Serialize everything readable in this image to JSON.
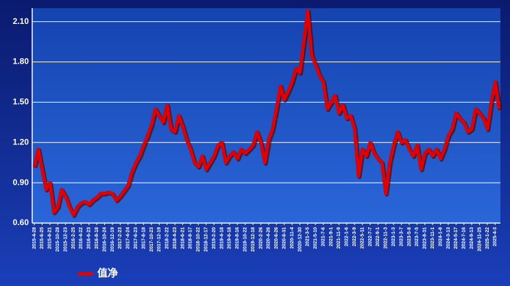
{
  "chart_data": {
    "type": "line",
    "categories": [
      "2015-4-28",
      null,
      "2015-6-25",
      null,
      "2015-8-21",
      null,
      "2015-10-28",
      null,
      "2015-12-23",
      null,
      "2016-2-25",
      null,
      "2016-4-22",
      null,
      "2016-6-23",
      null,
      "2016-8-18",
      null,
      "2016-10-24",
      null,
      "2016-12-19",
      null,
      "2017-2-23",
      null,
      "2017-4-24",
      null,
      "2017-6-23",
      null,
      "2017-8-18",
      null,
      "2017-10-23",
      null,
      "2017-12-19",
      null,
      "2018-2-22",
      null,
      "2018-4-23",
      null,
      "2018-6-21",
      null,
      "2018-8-17",
      null,
      "2018-10-22",
      null,
      "2018-12-17",
      null,
      "2019-2-20",
      null,
      "2019-4-18",
      null,
      "2019-6-18",
      null,
      "2019-8-16",
      null,
      "2019-10-22",
      null,
      "2019-12-18",
      null,
      "2020-2-26",
      null,
      "2020-4-26",
      null,
      "2020-6-26",
      null,
      "2020-8-31",
      null,
      "2020-11-4",
      null,
      "2020-12-30",
      null,
      "2021-3-5",
      null,
      "2021-5-10",
      null,
      "2021-7-6",
      null,
      "2021-9-1",
      null,
      "2021-11-9",
      null,
      "2022-1-6",
      null,
      "2022-3-9",
      null,
      "2022-5-11",
      null,
      "2022-7-7",
      null,
      "2022-9-1",
      null,
      "2022-11-3",
      null,
      "2023-1-3",
      null,
      "2023-3-7",
      null,
      "2023-5-8",
      null,
      "2023-7-5",
      null,
      "2023-8-31",
      null,
      "2023-11-1",
      null,
      "2024-1-8",
      null,
      "2024-3-13",
      null,
      "2024-5-17",
      null,
      "2024-7-16",
      null,
      "2024-9-13",
      null,
      "2024-11-25",
      null,
      "2025-1-22",
      null,
      "2025-4-3",
      null
    ],
    "series": [
      {
        "name": "值净",
        "color": "#e00000",
        "values": [
          1.02,
          1.15,
          1.0,
          0.85,
          0.9,
          0.68,
          0.72,
          0.85,
          0.8,
          0.72,
          0.66,
          0.72,
          0.75,
          0.76,
          0.74,
          0.77,
          0.79,
          0.82,
          0.82,
          0.83,
          0.82,
          0.77,
          0.8,
          0.84,
          0.88,
          0.98,
          1.05,
          1.1,
          1.18,
          1.25,
          1.33,
          1.45,
          1.4,
          1.35,
          1.48,
          1.3,
          1.28,
          1.4,
          1.32,
          1.22,
          1.15,
          1.05,
          1.02,
          1.1,
          1.0,
          1.05,
          1.1,
          1.18,
          1.2,
          1.05,
          1.1,
          1.13,
          1.08,
          1.15,
          1.12,
          1.15,
          1.18,
          1.28,
          1.2,
          1.05,
          1.22,
          1.3,
          1.45,
          1.62,
          1.52,
          1.58,
          1.65,
          1.75,
          1.72,
          1.95,
          2.18,
          1.85,
          1.78,
          1.7,
          1.65,
          1.45,
          1.5,
          1.55,
          1.42,
          1.48,
          1.38,
          1.4,
          1.3,
          0.95,
          1.15,
          1.1,
          1.2,
          1.12,
          1.08,
          1.05,
          0.82,
          1.05,
          1.18,
          1.28,
          1.2,
          1.22,
          1.15,
          1.1,
          1.18,
          1.0,
          1.12,
          1.15,
          1.1,
          1.15,
          1.08,
          1.15,
          1.25,
          1.3,
          1.42,
          1.38,
          1.35,
          1.28,
          1.3,
          1.45,
          1.42,
          1.38,
          1.3,
          1.5,
          1.65,
          1.45
        ]
      }
    ],
    "ylim": [
      0.6,
      2.2
    ],
    "yticks": [
      {
        "value": 0.6,
        "label": "0.60"
      },
      {
        "value": 0.9,
        "label": "0.90"
      },
      {
        "value": 1.2,
        "label": "1.20"
      },
      {
        "value": 1.5,
        "label": "1.50"
      },
      {
        "value": 1.8,
        "label": "1.80"
      },
      {
        "value": 2.1,
        "label": "2.10"
      }
    ],
    "grid": true
  }
}
